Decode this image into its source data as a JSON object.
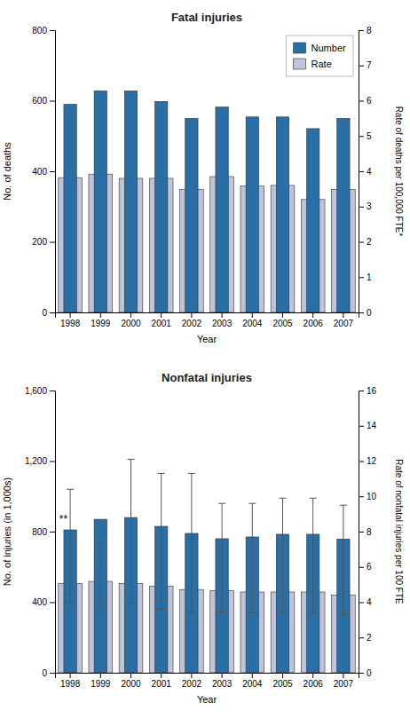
{
  "chart_data": [
    {
      "type": "bar",
      "title": "Fatal injuries",
      "x_label": "Year",
      "y_label": "No. of deaths",
      "y2_label": "Rate of deaths per 100,000 FTE*",
      "categories": [
        "1998",
        "1999",
        "2000",
        "2001",
        "2002",
        "2003",
        "2004",
        "2005",
        "2006",
        "2007"
      ],
      "series": [
        {
          "name": "Number",
          "color": "#2a6ea6",
          "values": [
            590,
            628,
            628,
            598,
            550,
            582,
            554,
            554,
            521,
            550
          ]
        },
        {
          "name": "Rate",
          "color": "#c0c4d8",
          "axis": "y2",
          "values": [
            3.82,
            3.92,
            3.8,
            3.8,
            3.48,
            3.85,
            3.58,
            3.6,
            3.2,
            3.48
          ]
        }
      ],
      "ylim": [
        0,
        800
      ],
      "yticks": [
        0,
        200,
        400,
        600,
        800
      ],
      "y2lim": [
        0,
        8
      ],
      "y2ticks": [
        0,
        1,
        2,
        3,
        4,
        5,
        6,
        7,
        8
      ],
      "grid": false,
      "legend": "upper right"
    },
    {
      "type": "bar",
      "title": "Nonfatal injuries",
      "x_label": "Year",
      "y_label": "No. of injuries (in 1,000s)",
      "y2_label": "Rate of nonfatal injuries per 100 FTE",
      "categories": [
        "1998",
        "1999",
        "2000",
        "2001",
        "2002",
        "2003",
        "2004",
        "2005",
        "2006",
        "2007"
      ],
      "series": [
        {
          "name": "Number",
          "color": "#2a6ea6",
          "values": [
            810,
            870,
            880,
            830,
            790,
            760,
            770,
            785,
            785,
            758
          ]
        },
        {
          "name": "Rate",
          "color": "#c0c4d8",
          "axis": "y2",
          "values": [
            5.05,
            5.18,
            5.05,
            4.9,
            4.72,
            4.65,
            4.58,
            4.58,
            4.58,
            4.4
          ],
          "upper": [
            10.4,
            7.4,
            12.1,
            11.3,
            11.3,
            9.6,
            9.6,
            9.9,
            9.9,
            9.5
          ],
          "lower": [
            3.95,
            3.65,
            3.95,
            3.6,
            3.45,
            3.4,
            3.4,
            3.4,
            3.4,
            3.3
          ]
        }
      ],
      "ylim": [
        0,
        1600
      ],
      "yticks": [
        0,
        400,
        800,
        {
          "value": 1200,
          "label": "1,200"
        },
        {
          "value": 1600,
          "label": "1,600"
        }
      ],
      "y2lim": [
        0,
        16
      ],
      "y2ticks": [
        0,
        2,
        4,
        6,
        8,
        10,
        12,
        14,
        16
      ],
      "grid": false,
      "annotations": [
        {
          "text": "**"
        }
      ]
    }
  ]
}
